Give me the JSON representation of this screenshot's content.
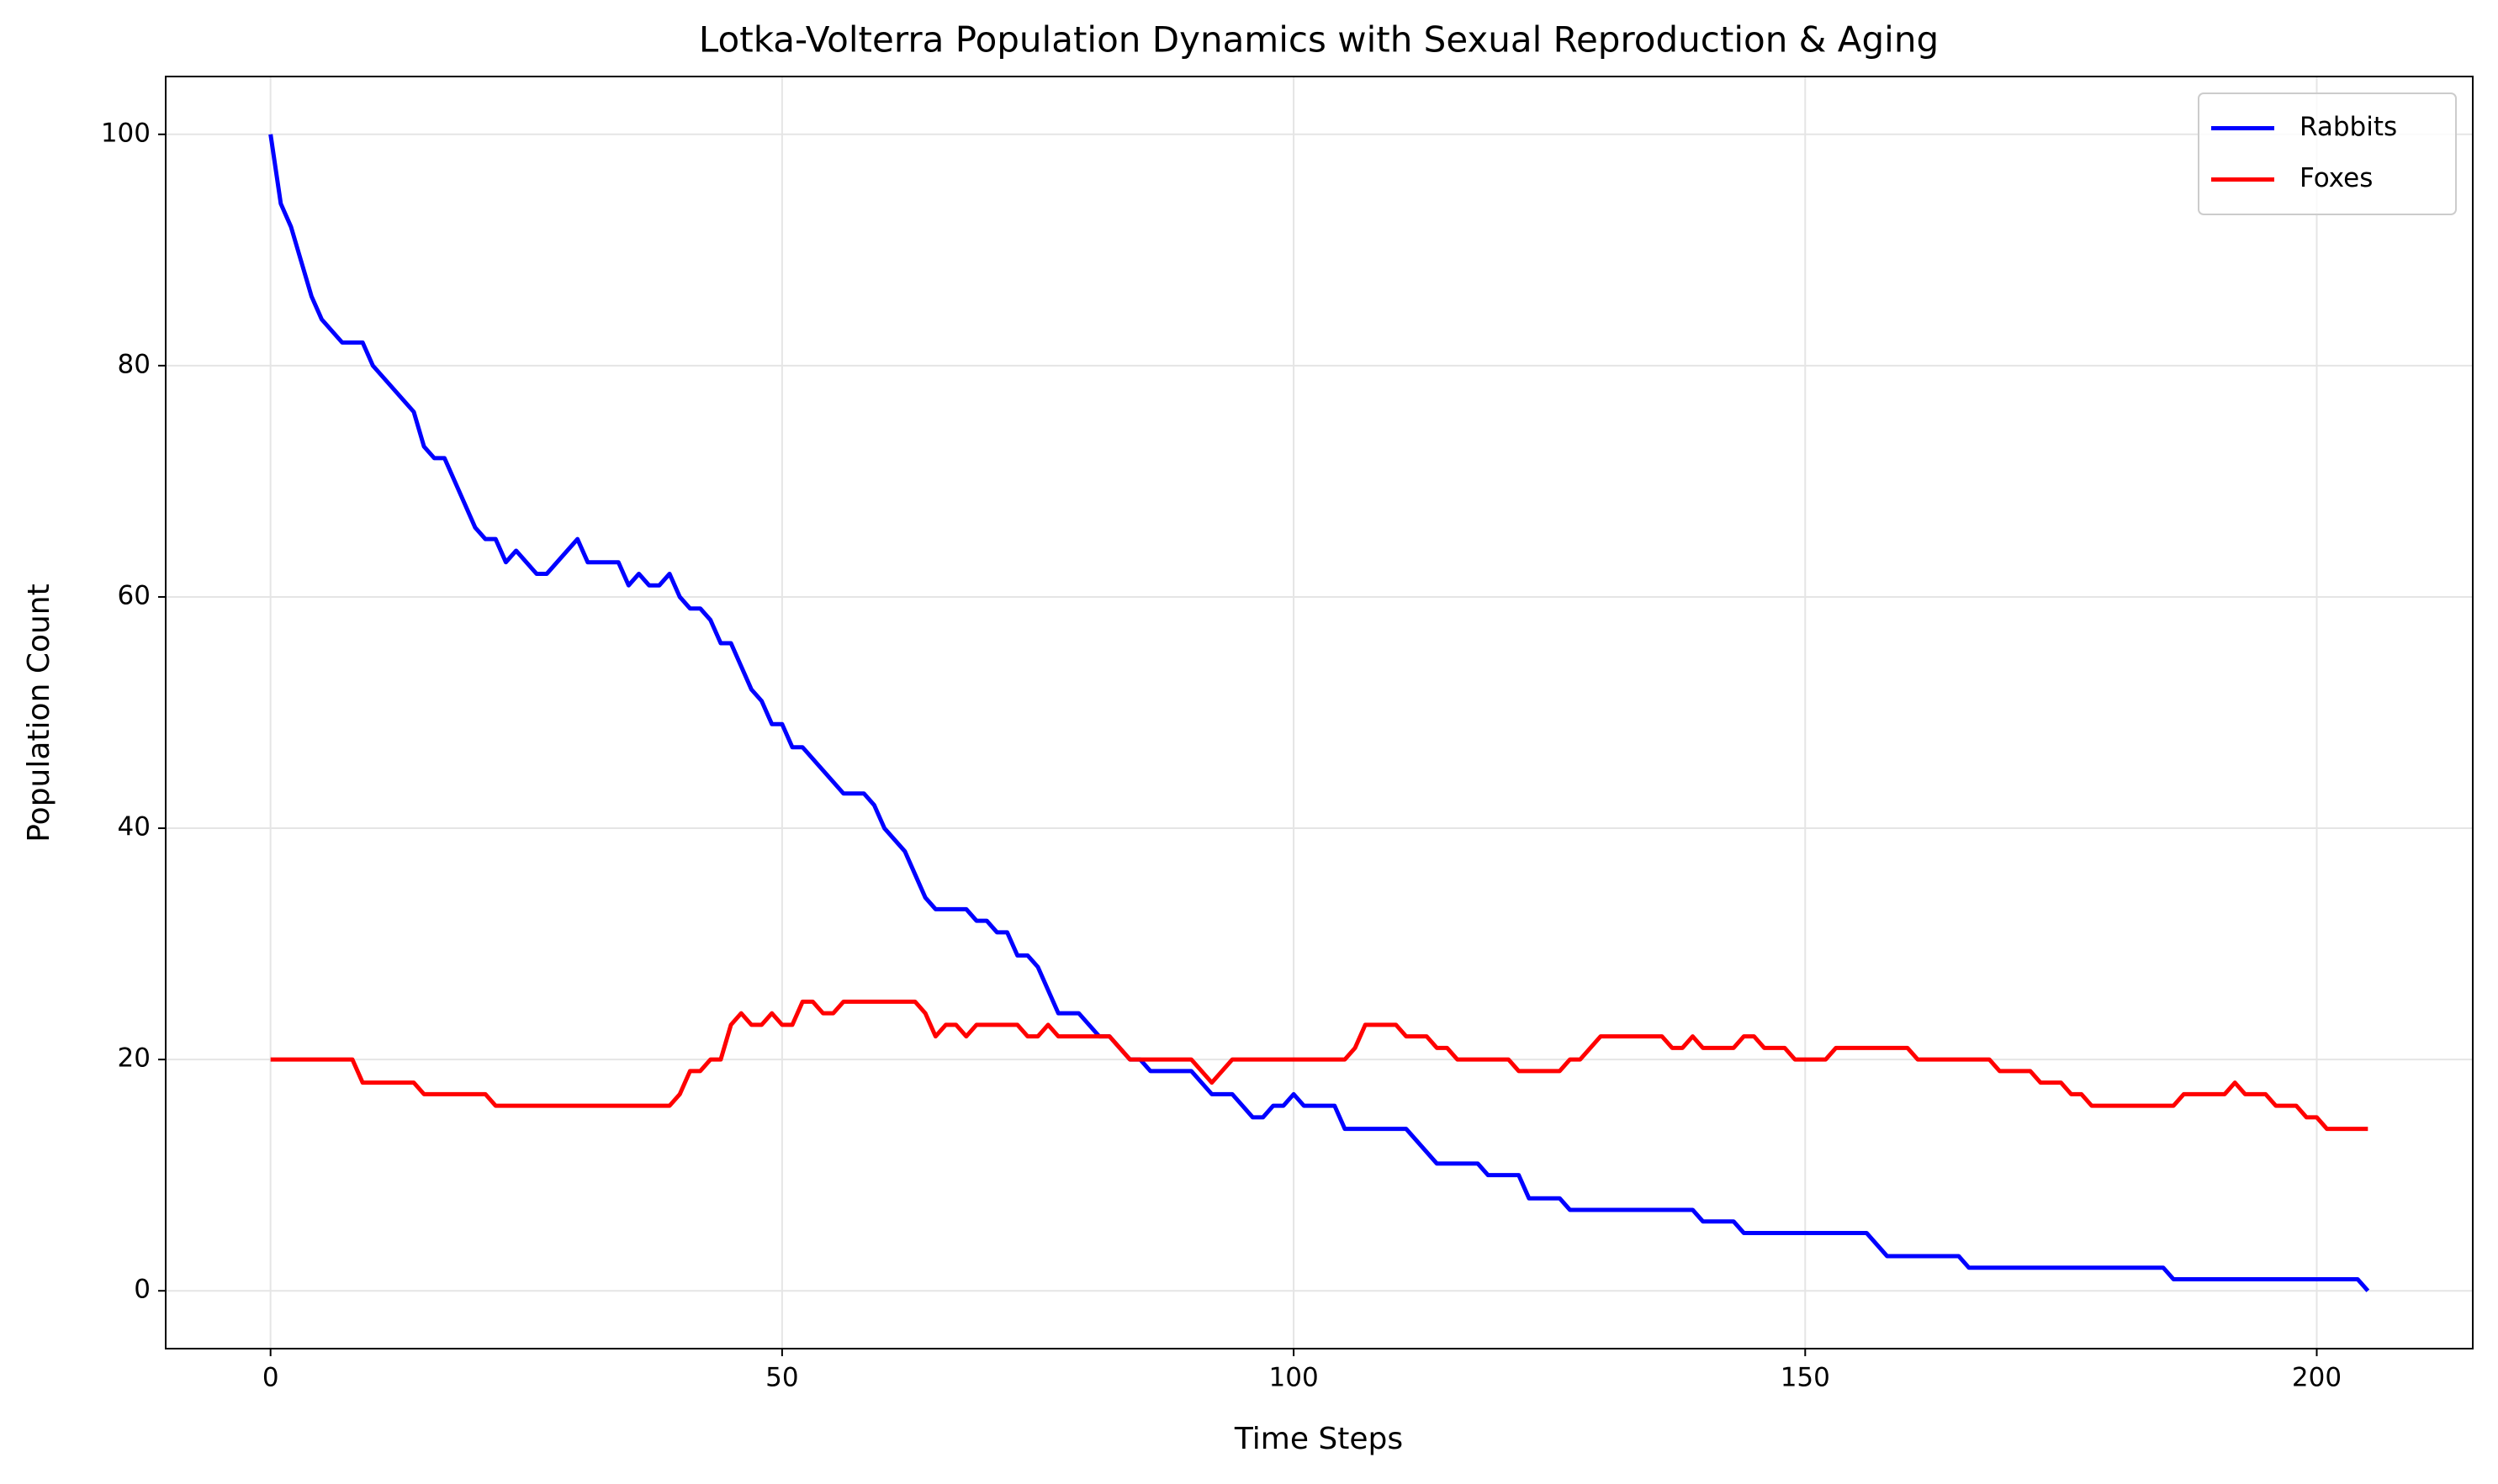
{
  "chart_data": {
    "type": "line",
    "title": "Lotka-Volterra Population Dynamics with Sexual Reproduction & Aging",
    "x_label": "Time Steps",
    "y_label": "Population Count",
    "x": [
      0,
      1,
      2,
      3,
      4,
      5,
      6,
      7,
      8,
      9,
      10,
      11,
      12,
      13,
      14,
      15,
      16,
      17,
      18,
      19,
      20,
      21,
      22,
      23,
      24,
      25,
      26,
      27,
      28,
      29,
      30,
      31,
      32,
      33,
      34,
      35,
      36,
      37,
      38,
      39,
      40,
      41,
      42,
      43,
      44,
      45,
      46,
      47,
      48,
      49,
      50,
      51,
      52,
      53,
      54,
      55,
      56,
      57,
      58,
      59,
      60,
      61,
      62,
      63,
      64,
      65,
      66,
      67,
      68,
      69,
      70,
      71,
      72,
      73,
      74,
      75,
      76,
      77,
      78,
      79,
      80,
      81,
      82,
      83,
      84,
      85,
      86,
      87,
      88,
      89,
      90,
      91,
      92,
      93,
      94,
      95,
      96,
      97,
      98,
      99,
      100,
      101,
      102,
      103,
      104,
      105,
      106,
      107,
      108,
      109,
      110,
      111,
      112,
      113,
      114,
      115,
      116,
      117,
      118,
      119,
      120,
      121,
      122,
      123,
      124,
      125,
      126,
      127,
      128,
      129,
      130,
      131,
      132,
      133,
      134,
      135,
      136,
      137,
      138,
      139,
      140,
      141,
      142,
      143,
      144,
      145,
      146,
      147,
      148,
      149,
      150,
      151,
      152,
      153,
      154,
      155,
      156,
      157,
      158,
      159,
      160,
      161,
      162,
      163,
      164,
      165,
      166,
      167,
      168,
      169,
      170,
      171,
      172,
      173,
      174,
      175,
      176,
      177,
      178,
      179,
      180,
      181,
      182,
      183,
      184,
      185,
      186,
      187,
      188,
      189,
      190,
      191,
      192,
      193,
      194,
      195,
      196,
      197,
      198,
      199,
      200,
      201,
      202,
      203,
      204,
      205
    ],
    "series": [
      {
        "name": "Rabbits",
        "color": "#0000ff",
        "values": [
          100,
          94,
          92,
          89,
          86,
          84,
          83,
          82,
          82,
          82,
          80,
          79,
          78,
          77,
          76,
          73,
          72,
          72,
          70,
          68,
          66,
          65,
          65,
          63,
          64,
          63,
          62,
          62,
          63,
          64,
          65,
          63,
          63,
          63,
          63,
          61,
          62,
          61,
          61,
          62,
          60,
          59,
          59,
          58,
          56,
          56,
          54,
          52,
          51,
          49,
          49,
          47,
          47,
          46,
          45,
          44,
          43,
          43,
          43,
          42,
          40,
          39,
          38,
          36,
          34,
          33,
          33,
          33,
          33,
          32,
          32,
          31,
          31,
          29,
          29,
          28,
          26,
          24,
          24,
          24,
          23,
          22,
          22,
          21,
          20,
          20,
          19,
          19,
          19,
          19,
          19,
          18,
          17,
          17,
          17,
          16,
          15,
          15,
          16,
          16,
          17,
          16,
          16,
          16,
          16,
          14,
          14,
          14,
          14,
          14,
          14,
          14,
          13,
          12,
          11,
          11,
          11,
          11,
          11,
          10,
          10,
          10,
          10,
          8,
          8,
          8,
          8,
          7,
          7,
          7,
          7,
          7,
          7,
          7,
          7,
          7,
          7,
          7,
          7,
          7,
          6,
          6,
          6,
          6,
          5,
          5,
          5,
          5,
          5,
          5,
          5,
          5,
          5,
          5,
          5,
          5,
          5,
          4,
          3,
          3,
          3,
          3,
          3,
          3,
          3,
          3,
          2,
          2,
          2,
          2,
          2,
          2,
          2,
          2,
          2,
          2,
          2,
          2,
          2,
          2,
          2,
          2,
          2,
          2,
          2,
          2,
          1,
          1,
          1,
          1,
          1,
          1,
          1,
          1,
          1,
          1,
          1,
          1,
          1,
          1,
          1,
          1,
          1,
          1,
          1,
          0
        ]
      },
      {
        "name": "Foxes",
        "color": "#ff0000",
        "values": [
          20,
          20,
          20,
          20,
          20,
          20,
          20,
          20,
          20,
          18,
          18,
          18,
          18,
          18,
          18,
          17,
          17,
          17,
          17,
          17,
          17,
          17,
          16,
          16,
          16,
          16,
          16,
          16,
          16,
          16,
          16,
          16,
          16,
          16,
          16,
          16,
          16,
          16,
          16,
          16,
          17,
          19,
          19,
          20,
          20,
          23,
          24,
          23,
          23,
          24,
          23,
          23,
          25,
          25,
          24,
          24,
          25,
          25,
          25,
          25,
          25,
          25,
          25,
          25,
          24,
          22,
          23,
          23,
          22,
          23,
          23,
          23,
          23,
          23,
          22,
          22,
          23,
          22,
          22,
          22,
          22,
          22,
          22,
          21,
          20,
          20,
          20,
          20,
          20,
          20,
          20,
          19,
          18,
          19,
          20,
          20,
          20,
          20,
          20,
          20,
          20,
          20,
          20,
          20,
          20,
          20,
          21,
          23,
          23,
          23,
          23,
          22,
          22,
          22,
          21,
          21,
          20,
          20,
          20,
          20,
          20,
          20,
          19,
          19,
          19,
          19,
          19,
          20,
          20,
          21,
          22,
          22,
          22,
          22,
          22,
          22,
          22,
          21,
          21,
          22,
          21,
          21,
          21,
          21,
          22,
          22,
          21,
          21,
          21,
          20,
          20,
          20,
          20,
          21,
          21,
          21,
          21,
          21,
          21,
          21,
          21,
          20,
          20,
          20,
          20,
          20,
          20,
          20,
          20,
          19,
          19,
          19,
          19,
          18,
          18,
          18,
          17,
          17,
          16,
          16,
          16,
          16,
          16,
          16,
          16,
          16,
          16,
          17,
          17,
          17,
          17,
          17,
          18,
          17,
          17,
          17,
          16,
          16,
          16,
          15,
          15,
          14,
          14,
          14,
          14,
          14
        ]
      }
    ],
    "xlim": [
      -10.25,
      215.25
    ],
    "ylim": [
      -5,
      105
    ],
    "xticks": [
      0,
      50,
      100,
      150,
      200
    ],
    "yticks": [
      0,
      20,
      40,
      60,
      80,
      100
    ],
    "grid": true,
    "legend_position": "upper right"
  }
}
